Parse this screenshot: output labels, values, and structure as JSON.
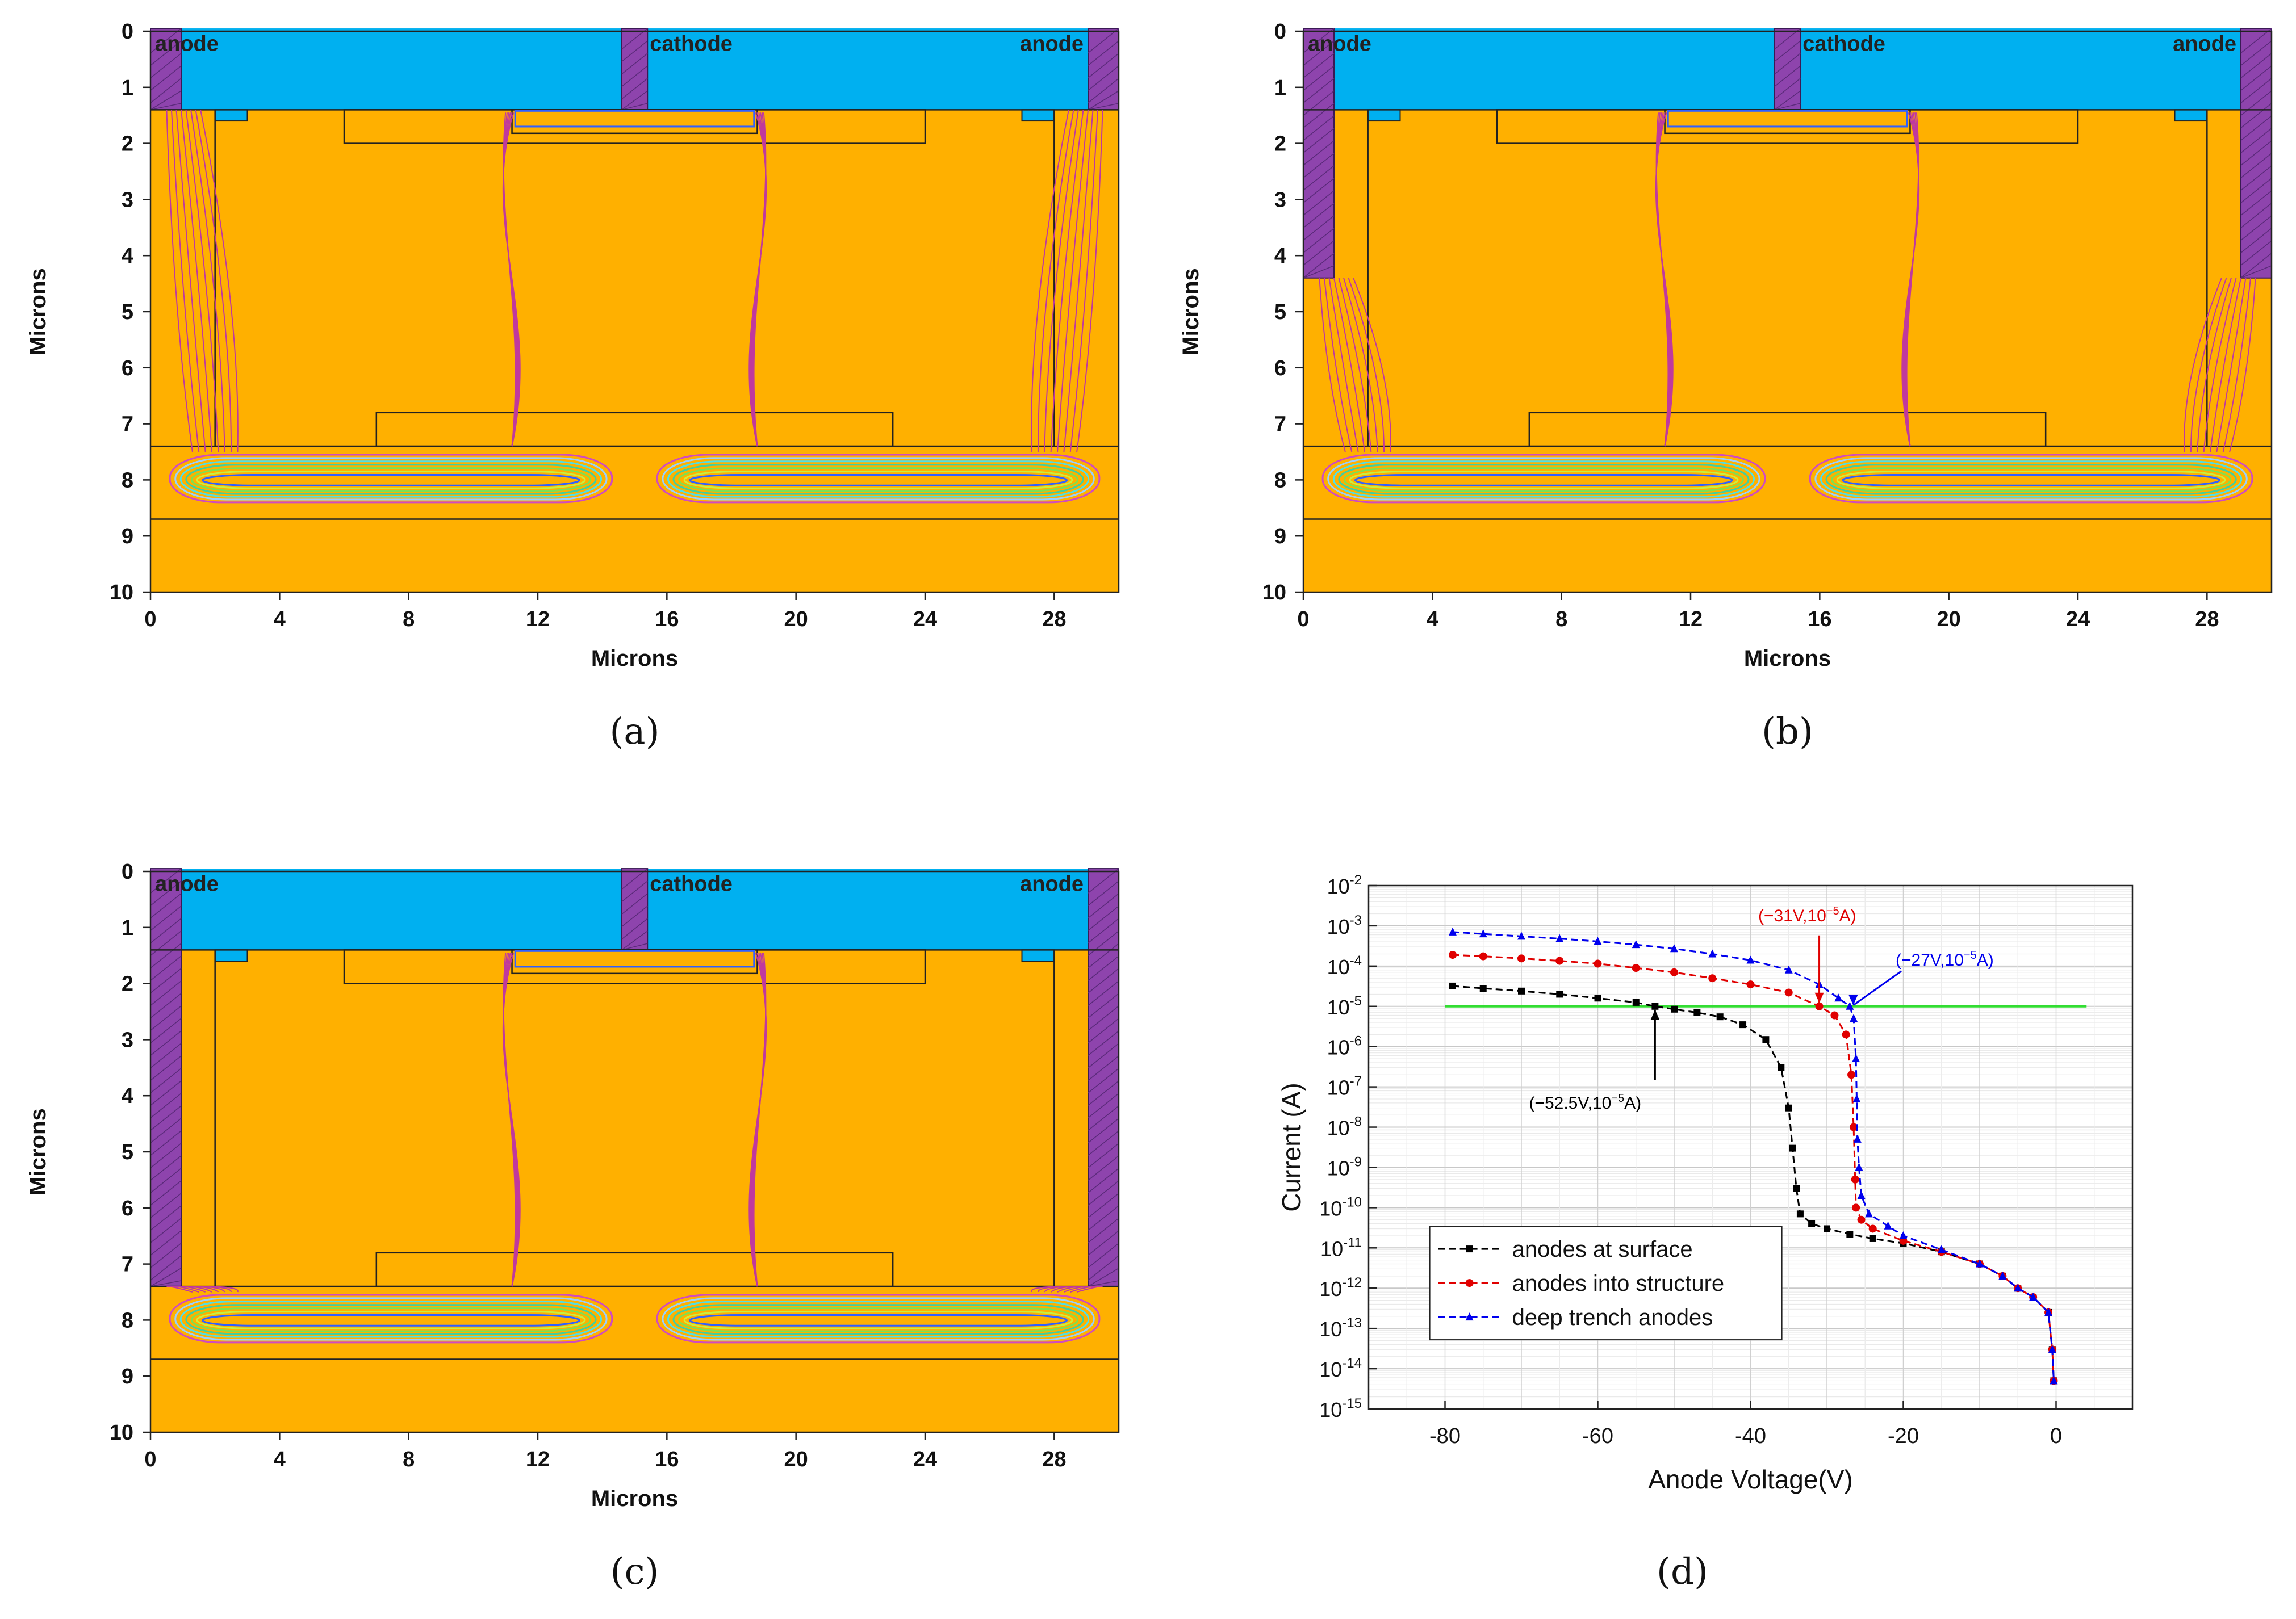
{
  "figure": {
    "panels": [
      {
        "id": "a",
        "caption": "(a)",
        "trench": "surface"
      },
      {
        "id": "b",
        "caption": "(b)",
        "trench": "mid"
      },
      {
        "id": "c",
        "caption": "(c)",
        "trench": "deep"
      }
    ],
    "structure_labels": {
      "anode": "anode",
      "cathode": "cathode"
    },
    "axis": {
      "xlabel": "Microns",
      "ylabel": "Microns",
      "xticks": [
        "0",
        "4",
        "8",
        "12",
        "16",
        "20",
        "24",
        "28"
      ],
      "yticks": [
        "0",
        "1",
        "2",
        "3",
        "4",
        "5",
        "6",
        "7",
        "8",
        "9",
        "10"
      ]
    },
    "colors": {
      "silicon": "#FFB000",
      "oxide": "#00B0F0",
      "contact": "#8E44AD",
      "contour": "#C0399E",
      "threshold": "#33DD33"
    }
  },
  "chart_data": {
    "type": "line",
    "caption": "(d)",
    "xlabel": "Anode Voltage(V)",
    "ylabel": "Current (A)",
    "xlim": [
      -90,
      10
    ],
    "ylim_exp": [
      -15,
      -2
    ],
    "yscale": "log",
    "xticks": [
      "-80",
      "-60",
      "-40",
      "-20",
      "0"
    ],
    "xtick_values": [
      -80,
      -60,
      -40,
      -20,
      0
    ],
    "threshold_current": 1e-05,
    "series": [
      {
        "name": "anodes at surface",
        "color": "#000000",
        "marker": "square",
        "points": [
          [
            -79,
            3.2e-05
          ],
          [
            -75,
            2.8e-05
          ],
          [
            -70,
            2.4e-05
          ],
          [
            -65,
            2e-05
          ],
          [
            -60,
            1.6e-05
          ],
          [
            -55,
            1.25e-05
          ],
          [
            -52.5,
            1e-05
          ],
          [
            -50,
            8.5e-06
          ],
          [
            -47,
            7e-06
          ],
          [
            -44,
            5.5e-06
          ],
          [
            -41,
            3.5e-06
          ],
          [
            -38,
            1.5e-06
          ],
          [
            -36,
            3e-07
          ],
          [
            -35,
            3e-08
          ],
          [
            -34.5,
            3e-09
          ],
          [
            -34,
            3e-10
          ],
          [
            -33.5,
            7e-11
          ],
          [
            -32,
            4e-11
          ],
          [
            -30,
            3e-11
          ],
          [
            -27,
            2.2e-11
          ],
          [
            -24,
            1.7e-11
          ],
          [
            -20,
            1.3e-11
          ],
          [
            -15,
            8e-12
          ],
          [
            -10,
            4e-12
          ],
          [
            -7,
            2e-12
          ],
          [
            -5,
            1e-12
          ],
          [
            -3,
            6e-13
          ],
          [
            -1,
            2.5e-13
          ],
          [
            -0.5,
            3e-14
          ],
          [
            -0.3,
            5e-15
          ]
        ]
      },
      {
        "name": "anodes into structure",
        "color": "#E00000",
        "marker": "circle",
        "points": [
          [
            -79,
            0.00019
          ],
          [
            -75,
            0.000175
          ],
          [
            -70,
            0.000155
          ],
          [
            -65,
            0.000135
          ],
          [
            -60,
            0.000115
          ],
          [
            -55,
            9e-05
          ],
          [
            -50,
            7e-05
          ],
          [
            -45,
            5e-05
          ],
          [
            -40,
            3.5e-05
          ],
          [
            -35,
            2.2e-05
          ],
          [
            -31,
            1e-05
          ],
          [
            -29,
            6e-06
          ],
          [
            -27.5,
            2e-06
          ],
          [
            -26.8,
            2e-07
          ],
          [
            -26.5,
            1e-08
          ],
          [
            -26.3,
            5e-10
          ],
          [
            -26.2,
            1e-10
          ],
          [
            -25.5,
            5e-11
          ],
          [
            -24,
            3e-11
          ],
          [
            -20,
            1.5e-11
          ],
          [
            -15,
            8e-12
          ],
          [
            -10,
            4e-12
          ],
          [
            -7,
            2e-12
          ],
          [
            -5,
            1e-12
          ],
          [
            -3,
            6e-13
          ],
          [
            -1,
            2.5e-13
          ],
          [
            -0.5,
            3e-14
          ],
          [
            -0.3,
            5e-15
          ]
        ]
      },
      {
        "name": "deep trench anodes",
        "color": "#0000EE",
        "marker": "triangle",
        "points": [
          [
            -79,
            0.0007
          ],
          [
            -75,
            0.00063
          ],
          [
            -70,
            0.00055
          ],
          [
            -65,
            0.00048
          ],
          [
            -60,
            0.00041
          ],
          [
            -55,
            0.00034
          ],
          [
            -50,
            0.00027
          ],
          [
            -45,
            0.0002
          ],
          [
            -40,
            0.00014
          ],
          [
            -35,
            8e-05
          ],
          [
            -31,
            3.5e-05
          ],
          [
            -28.5,
            1.6e-05
          ],
          [
            -27,
            1e-05
          ],
          [
            -26.5,
            5e-06
          ],
          [
            -26.2,
            5e-07
          ],
          [
            -26.1,
            5e-08
          ],
          [
            -26,
            5e-09
          ],
          [
            -25.8,
            1e-09
          ],
          [
            -25.5,
            2e-10
          ],
          [
            -24.5,
            7e-11
          ],
          [
            -22,
            3.5e-11
          ],
          [
            -20,
            2e-11
          ],
          [
            -15,
            9e-12
          ],
          [
            -10,
            4e-12
          ],
          [
            -7,
            2e-12
          ],
          [
            -5,
            1e-12
          ],
          [
            -3,
            6e-13
          ],
          [
            -1,
            2.5e-13
          ],
          [
            -0.5,
            3e-14
          ],
          [
            -0.3,
            5e-15
          ]
        ]
      }
    ],
    "annotations": [
      {
        "text_base": "(−52.5V,10",
        "exp": "−5",
        "tail": "A)",
        "x": -52.5,
        "y": 1e-05,
        "color": "#000000"
      },
      {
        "text_base": "(−31V,10",
        "exp": "−5",
        "tail": "A)",
        "x": -31,
        "y": 1e-05,
        "color": "#E00000"
      },
      {
        "text_base": "(−27V,10",
        "exp": "−5",
        "tail": "A)",
        "x": -27,
        "y": 1e-05,
        "color": "#0000EE"
      }
    ]
  }
}
